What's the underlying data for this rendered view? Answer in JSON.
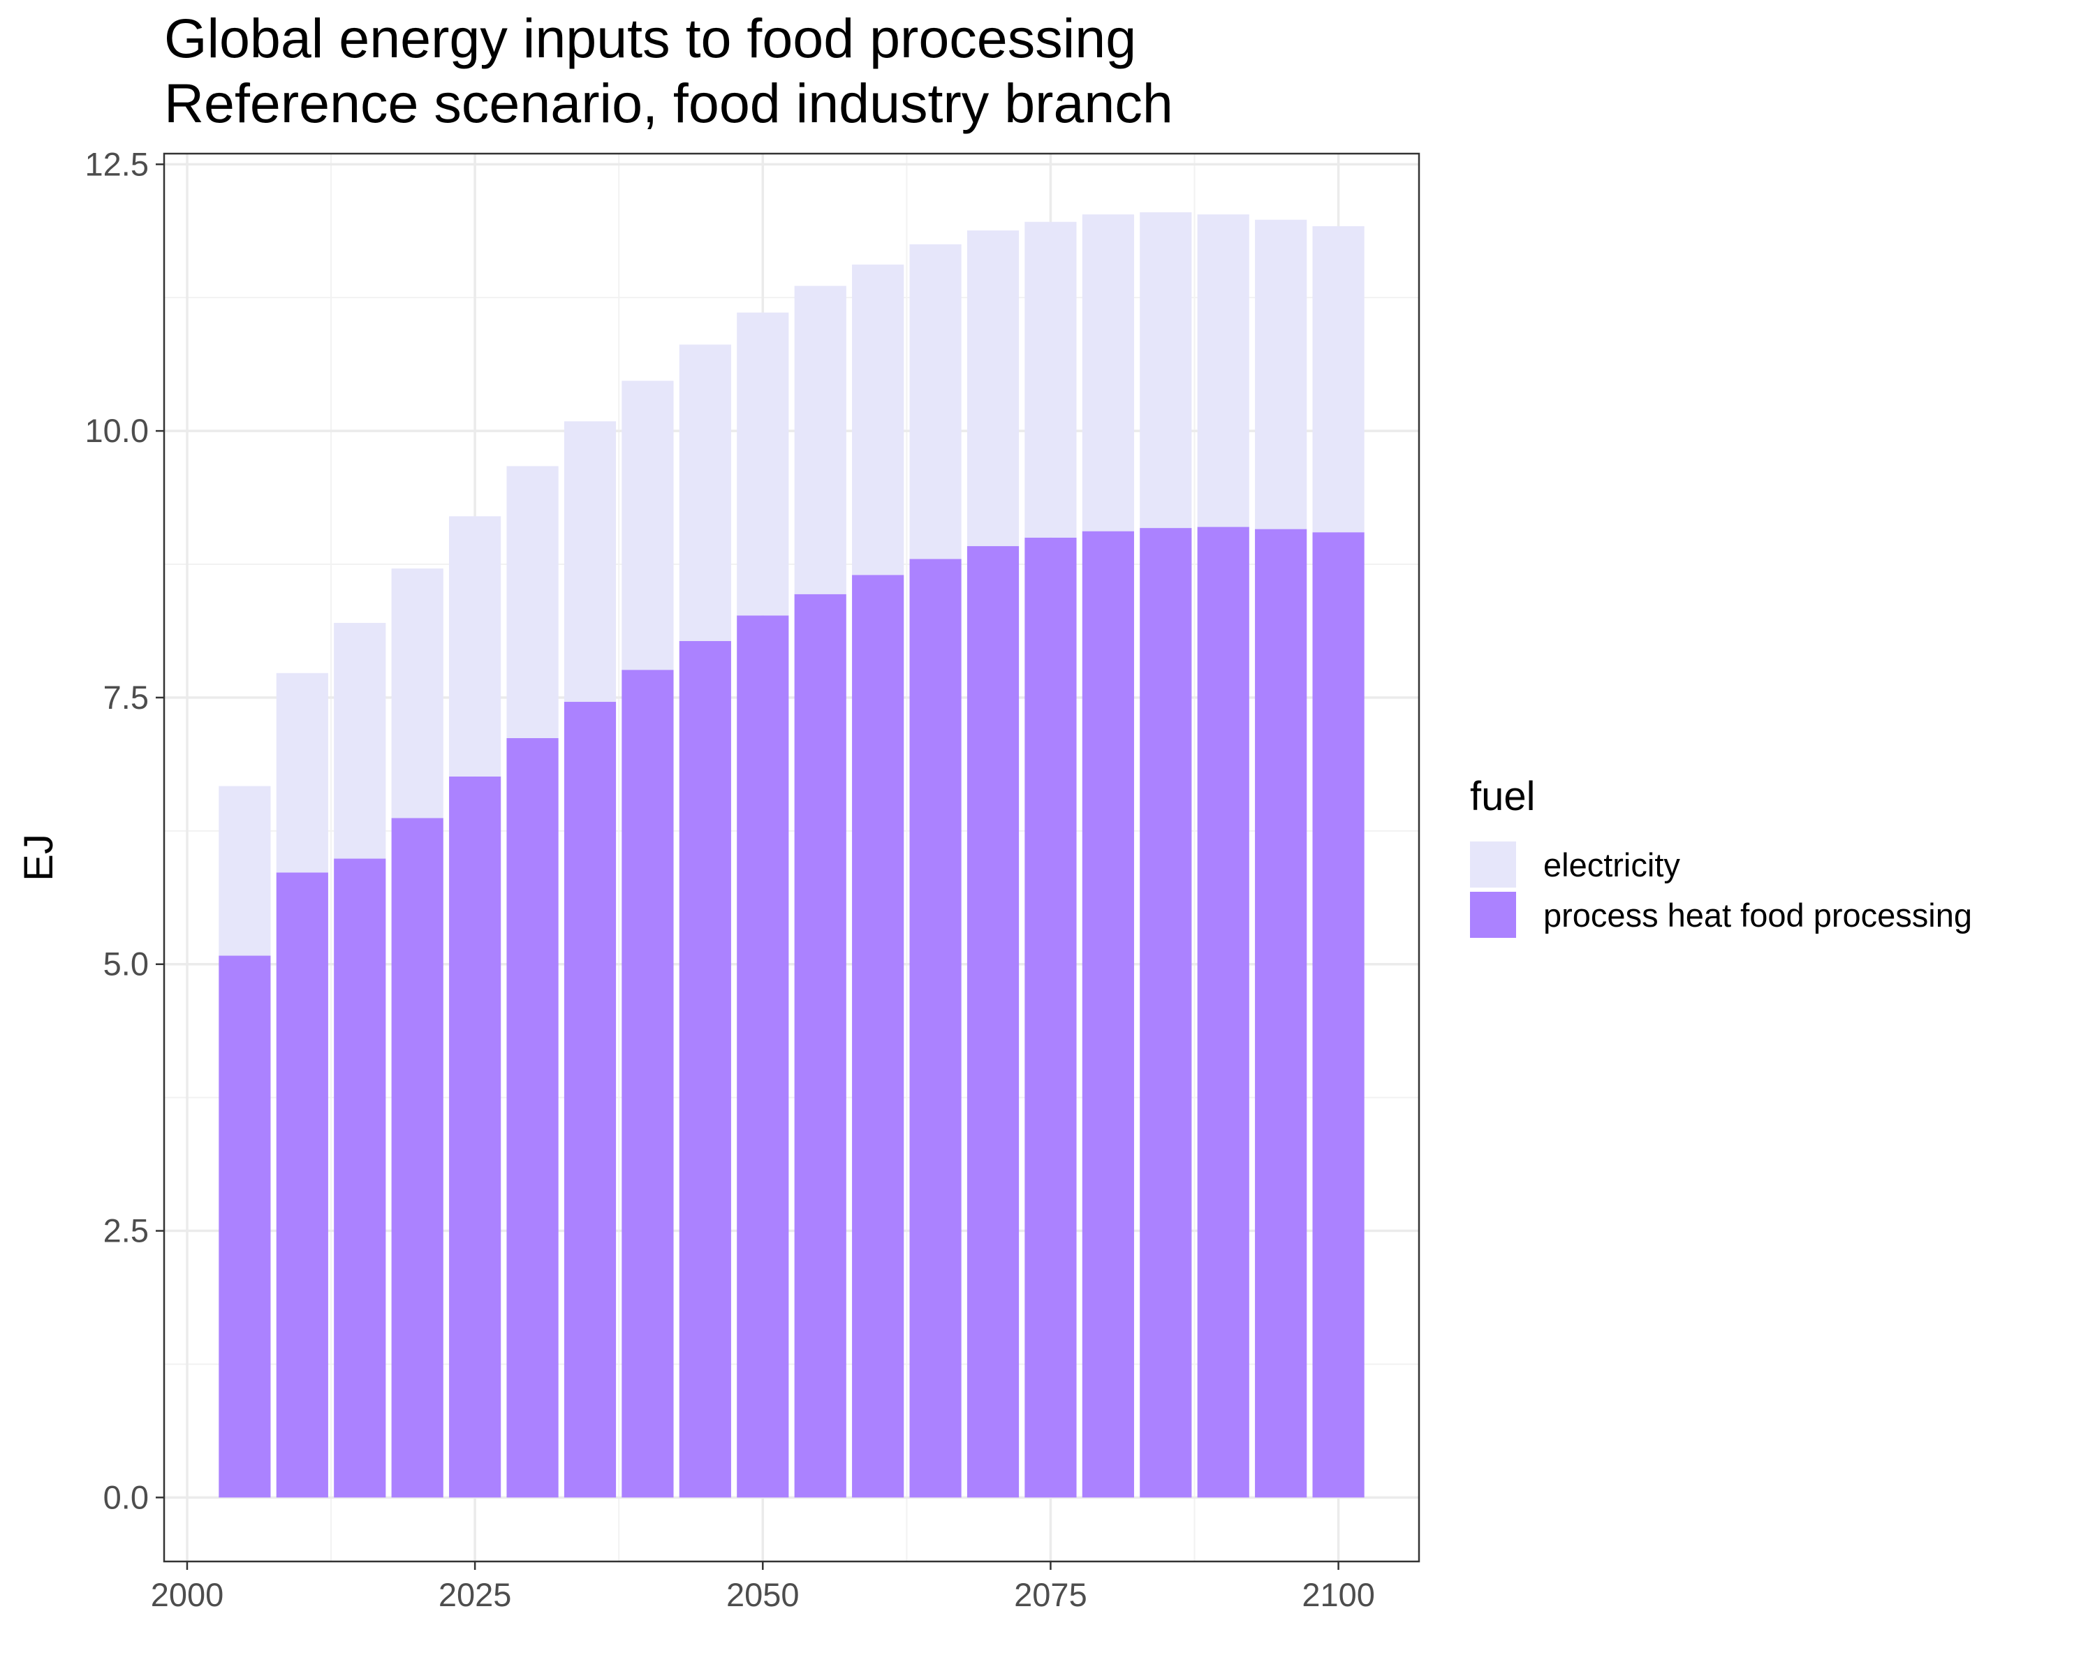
{
  "chart_data": {
    "type": "bar",
    "stacked": true,
    "title": "Global energy inputs to food processing",
    "subtitle": "Reference scenario, food industry branch",
    "xlabel": "",
    "ylabel": "EJ",
    "x": [
      2005,
      2010,
      2015,
      2020,
      2025,
      2030,
      2035,
      2040,
      2045,
      2050,
      2055,
      2060,
      2065,
      2070,
      2075,
      2080,
      2085,
      2090,
      2095,
      2100
    ],
    "xlim": [
      1998,
      2107
    ],
    "ylim": [
      -0.6,
      12.6
    ],
    "x_ticks": [
      "2000",
      "2025",
      "2050",
      "2075",
      "2100"
    ],
    "y_ticks": [
      "0.0",
      "2.5",
      "5.0",
      "7.5",
      "10.0",
      "12.5"
    ],
    "grid": true,
    "legend": {
      "title": "fuel",
      "position": "right"
    },
    "series": [
      {
        "name": "process heat food processing",
        "color": "#AB82FF",
        "values": [
          5.08,
          5.86,
          5.99,
          6.37,
          6.76,
          7.12,
          7.46,
          7.76,
          8.03,
          8.27,
          8.47,
          8.65,
          8.8,
          8.92,
          9.0,
          9.06,
          9.09,
          9.1,
          9.08,
          9.05
        ]
      },
      {
        "name": "electricity",
        "color": "#E6E6FA",
        "values": [
          1.59,
          1.87,
          2.21,
          2.34,
          2.44,
          2.55,
          2.63,
          2.71,
          2.78,
          2.84,
          2.89,
          2.91,
          2.95,
          2.96,
          2.96,
          2.97,
          2.96,
          2.93,
          2.9,
          2.87
        ]
      }
    ]
  }
}
